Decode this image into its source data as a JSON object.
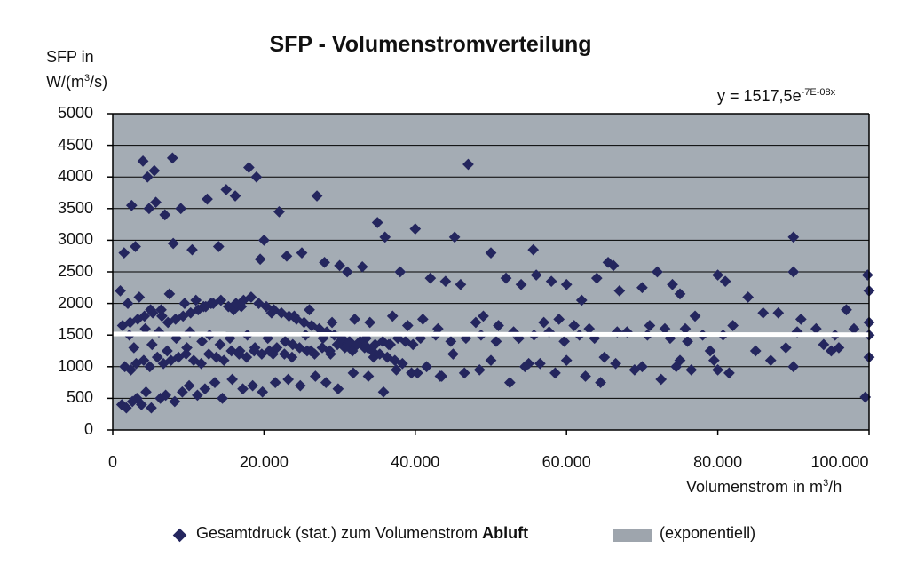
{
  "chart_data": {
    "type": "scatter",
    "title": "SFP - Volumenstromverteilung",
    "ylabel_line1": "SFP in",
    "ylabel_line2_pre": "W/(m",
    "ylabel_line2_sup": "3",
    "ylabel_line2_post": "/s)",
    "xlabel_pre": "Volumenstrom in m",
    "xlabel_sup": "3",
    "xlabel_post": "/h",
    "equation_pre": "y = 1517,5e",
    "equation_sup": "-7E-08x",
    "xlim": [
      0,
      100000
    ],
    "ylim": [
      0,
      5000
    ],
    "yticks": [
      "0",
      "500",
      "1000",
      "1500",
      "2000",
      "2500",
      "3000",
      "3500",
      "4000",
      "4500",
      "5000"
    ],
    "xticks": [
      "0",
      "20.000",
      "40.000",
      "60.000",
      "80.000",
      "100.000"
    ],
    "grid": "horizontal",
    "legend_position": "bottom",
    "legend": {
      "series_label_pre": "Gesamtdruck (stat.) zum Volumenstrom ",
      "series_label_bold": "Abluft",
      "trend_label": "(exponentiell)"
    },
    "colors": {
      "plot_bg": "#a4acb4",
      "marker": "#24265e",
      "trendline": "#ffffff"
    },
    "trendline": {
      "model": "exponential",
      "a": 1517.5,
      "b": -7e-08
    },
    "series": [
      {
        "x": [
          4000,
          7900,
          5500,
          4600,
          18000,
          19000,
          15000,
          16200,
          12500,
          5700,
          2500,
          4800,
          6900,
          9000,
          22000,
          27000,
          35000,
          47000,
          40000,
          90000,
          36000,
          45200,
          55600,
          65500,
          66200,
          50000,
          30000,
          33000,
          20000,
          25000,
          1500,
          3000,
          8000,
          10500,
          14000,
          19500,
          23000,
          28000,
          31000,
          38000,
          42000,
          44000,
          46000,
          52000,
          54000,
          56000,
          58000,
          60000,
          62000,
          64000,
          67000,
          70000,
          72000,
          74000,
          75000,
          77000,
          80000,
          81000,
          84000,
          86000,
          88000,
          90000,
          93000,
          95000,
          97000,
          99800,
          100000,
          100000,
          100000,
          100000,
          1000,
          2000,
          3500,
          5000,
          6500,
          7500,
          9500,
          11000,
          12000,
          13000,
          16000,
          17000,
          21000,
          24000,
          26000,
          29000,
          32000,
          34000,
          37000,
          39000,
          41000,
          43000,
          48000,
          49000,
          51000,
          53000,
          57000,
          59000,
          61000,
          63000,
          68000,
          71000,
          73000,
          76000,
          78000,
          79000,
          82000,
          85000,
          89000,
          91000,
          94000,
          96000,
          98000,
          2200,
          4300,
          6100,
          8400,
          10200,
          12800,
          15500,
          17800,
          20500,
          22800,
          25500,
          27800,
          30500,
          33500,
          36500,
          2800,
          5200,
          7200,
          9800,
          11800,
          14200,
          16800,
          18800,
          21200,
          23800,
          26200,
          28800,
          31500,
          34500,
          45000,
          50000,
          55000,
          60000,
          65000,
          70000,
          75000,
          80000,
          90000,
          1200,
          1800,
          2600,
          3200,
          3800,
          4400,
          5100,
          6300,
          7000,
          8200,
          9200,
          10100,
          11200,
          12200,
          13500,
          14500,
          15800,
          17200,
          18500,
          19800,
          21500,
          23200,
          24800,
          26800,
          28200,
          29800,
          31800,
          33800,
          35800,
          37500,
          39500,
          41500,
          43500,
          46500,
          48500,
          52500,
          54500,
          56500,
          58500,
          62500,
          64500,
          66500,
          69000,
          72500,
          74500,
          76500,
          79500,
          81500,
          87000,
          1600,
          2400,
          3100,
          4100,
          4900,
          5900,
          6700,
          7700,
          8700,
          9700,
          10700,
          11700,
          12700,
          13700,
          14700,
          15700,
          16700,
          17700,
          18700,
          19700,
          20700,
          21700,
          22700,
          23700,
          24700,
          25700,
          26700,
          27700,
          28700,
          29700,
          30700,
          31700,
          32700,
          33700,
          34700,
          35700,
          36700,
          37700,
          38700,
          39700,
          40700,
          42700,
          44700,
          46700,
          48700,
          50700,
          53700,
          55700,
          57700,
          59700,
          61700,
          63700,
          66700,
          70700,
          73700,
          75700,
          80700,
          90500,
          95500,
          99500,
          1300,
          2300,
          3300,
          4200,
          5300,
          6400,
          7300,
          8300,
          9300,
          10300,
          11300,
          12300,
          13300,
          14300,
          15300,
          16300,
          17300,
          18300,
          19300,
          20300,
          21300,
          22300,
          23300,
          24300,
          25300,
          26300,
          27300,
          28300,
          29300,
          30300,
          31300,
          32300,
          33300,
          34300,
          35300,
          36300,
          37300,
          38300,
          40300,
          43300
        ],
        "y": [
          4250,
          4300,
          4100,
          4000,
          4150,
          4000,
          3800,
          3700,
          3650,
          3600,
          3550,
          3500,
          3400,
          3500,
          3450,
          3700,
          3280,
          4200,
          3180,
          3050,
          3050,
          3050,
          2850,
          2650,
          2600,
          2800,
          2600,
          2580,
          3000,
          2800,
          2800,
          2900,
          2950,
          2850,
          2900,
          2700,
          2750,
          2650,
          2500,
          2500,
          2400,
          2350,
          2300,
          2400,
          2300,
          2450,
          2350,
          2300,
          2050,
          2400,
          2200,
          2250,
          2500,
          2300,
          2150,
          1800,
          2450,
          2350,
          2100,
          1850,
          1850,
          2500,
          1600,
          1250,
          1900,
          2450,
          2200,
          1700,
          1500,
          1150,
          2200,
          2000,
          2100,
          1900,
          1800,
          2150,
          2000,
          2050,
          1950,
          2000,
          1900,
          1950,
          1850,
          1800,
          1900,
          1700,
          1750,
          1700,
          1800,
          1650,
          1750,
          1600,
          1700,
          1800,
          1650,
          1550,
          1700,
          1750,
          1650,
          1600,
          1550,
          1650,
          1600,
          1400,
          1500,
          1250,
          1650,
          1250,
          1300,
          1750,
          1350,
          1300,
          1600,
          1500,
          1600,
          1550,
          1450,
          1550,
          1500,
          1450,
          1500,
          1450,
          1400,
          1500,
          1450,
          1400,
          1450,
          1350,
          1300,
          1350,
          1250,
          1300,
          1400,
          1350,
          1250,
          1300,
          1200,
          1350,
          1250,
          1200,
          1300,
          1150,
          1200,
          1100,
          1050,
          1100,
          1150,
          1000,
          1100,
          950,
          1000,
          400,
          350,
          450,
          500,
          400,
          600,
          350,
          500,
          550,
          450,
          600,
          700,
          550,
          650,
          750,
          500,
          800,
          650,
          700,
          600,
          750,
          800,
          700,
          850,
          750,
          650,
          900,
          850,
          600,
          950,
          900,
          1000,
          850,
          900,
          950,
          750,
          1000,
          1050,
          900,
          850,
          750,
          1050,
          950,
          800,
          1000,
          950,
          1100,
          900,
          1100,
          1000,
          950,
          1050,
          1100,
          1000,
          1150,
          1050,
          1100,
          1150,
          1200,
          1100,
          1050,
          1200,
          1150,
          1100,
          1250,
          1200,
          1150,
          1250,
          1200,
          1250,
          1300,
          1200,
          1150,
          1300,
          1250,
          1200,
          1300,
          1250,
          1350,
          1300,
          1250,
          1400,
          1300,
          1350,
          1400,
          1350,
          1450,
          1400,
          1350,
          1450,
          1500,
          1400,
          1450,
          1500,
          1400,
          1450,
          1500,
          1550,
          1400,
          1500,
          1450,
          1550,
          1500,
          1450,
          1600,
          1500,
          1550,
          1500,
          520,
          1650,
          1700,
          1750,
          1800,
          1850,
          1900,
          1700,
          1750,
          1800,
          1850,
          1900,
          1950,
          2000,
          2050,
          1950,
          2000,
          2050,
          2100,
          2000,
          1950,
          1900,
          1850,
          1800,
          1750,
          1700,
          1650,
          1600,
          1550,
          1500,
          1450,
          1400,
          1350,
          1300,
          1250,
          1200,
          1150,
          1100,
          1050,
          900,
          850
        ]
      }
    ]
  }
}
